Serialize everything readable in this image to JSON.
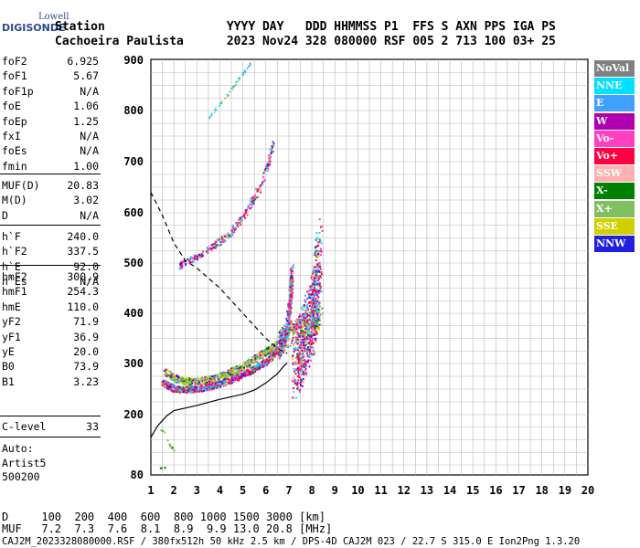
{
  "logo": {
    "top": "Lowell",
    "main": "DIGISONDE"
  },
  "header": {
    "line1": "Station                 YYYY DAY   DDD HHMMSS P1  FFS S AXN PPS IGA PS",
    "line2": "Cachoeira Paulista      2023 Nov24 328 080000 RSF 005 2 713 100 03+ 25"
  },
  "params_a": [
    {
      "k": "foF2",
      "v": "6.925"
    },
    {
      "k": "foF1",
      "v": "5.67"
    },
    {
      "k": "foF1p",
      "v": "N/A"
    },
    {
      "k": "foE",
      "v": "1.06"
    },
    {
      "k": "foEp",
      "v": "1.25"
    },
    {
      "k": "fxI",
      "v": "N/A"
    },
    {
      "k": "foEs",
      "v": "N/A"
    },
    {
      "k": "fmin",
      "v": "1.00"
    }
  ],
  "params_b": [
    {
      "k": "MUF(D)",
      "v": "20.83"
    },
    {
      "k": "M(D)",
      "v": "3.02"
    },
    {
      "k": "D",
      "v": "N/A"
    }
  ],
  "params_c": [
    {
      "k": "h`F",
      "v": "240.0"
    },
    {
      "k": "h`F2",
      "v": "337.5"
    },
    {
      "k": "h`E",
      "v": "92.0"
    },
    {
      "k": "h`Es",
      "v": "N/A"
    }
  ],
  "params_d": [
    {
      "k": "hmF2",
      "v": "300.9"
    },
    {
      "k": "hmF1",
      "v": "254.3"
    },
    {
      "k": "hmE",
      "v": "110.0"
    },
    {
      "k": "yF2",
      "v": "71.9"
    },
    {
      "k": "yF1",
      "v": "36.9"
    },
    {
      "k": "yE",
      "v": "20.0"
    },
    {
      "k": "B0",
      "v": "73.9"
    },
    {
      "k": "B1",
      "v": "3.23"
    }
  ],
  "params_e": [
    {
      "k": "C-level",
      "v": "33"
    }
  ],
  "auto": {
    "l1": "Auto:",
    "l2": "Artist5",
    "l3": "500200"
  },
  "legend": [
    {
      "label": "NoVal",
      "color": "#808080"
    },
    {
      "label": "NNE",
      "color": "#00e0ff"
    },
    {
      "label": "E",
      "color": "#40a0ff"
    },
    {
      "label": "W",
      "color": "#b000b0"
    },
    {
      "label": "Vo-",
      "color": "#ff40c0"
    },
    {
      "label": "Vo+",
      "color": "#ff0040"
    },
    {
      "label": "SSW",
      "color": "#ffb0b0"
    },
    {
      "label": "X-",
      "color": "#008000"
    },
    {
      "label": "X+",
      "color": "#80c060"
    },
    {
      "label": "SSE",
      "color": "#d0d000"
    },
    {
      "label": "NNW",
      "color": "#2020e0"
    }
  ],
  "footer": {
    "d_line": "D     100  200  400  600  800 1000 1500 3000 [km]",
    "muf_line": "MUF   7.2  7.3  7.6  8.1  8.9  9.9 13.0 20.8 [MHz]",
    "info_line": "CAJ2M_2023328080000.RSF / 380fx512h 50 kHz 2.5 km / DPS-4D CAJ2M 023 / 22.7 S 315.0 E Ion2Png 1.3.20"
  },
  "chart_data": {
    "type": "scatter",
    "x_ticks": [
      1,
      2,
      3,
      4,
      5,
      6,
      7,
      8,
      9,
      10,
      11,
      12,
      13,
      14,
      15,
      16,
      17,
      18,
      19,
      20
    ],
    "y_ticks": [
      80,
      200,
      300,
      400,
      500,
      600,
      700,
      800,
      900
    ],
    "xlim": [
      1,
      20
    ],
    "ylim": [
      80,
      900
    ],
    "grid": true,
    "traces": {
      "o_lower": [
        [
          1.5,
          265
        ],
        [
          1.7,
          258
        ],
        [
          2.0,
          252
        ],
        [
          2.5,
          250
        ],
        [
          3.0,
          252
        ],
        [
          3.5,
          256
        ],
        [
          4.0,
          262
        ],
        [
          4.5,
          270
        ],
        [
          5.0,
          280
        ],
        [
          5.5,
          292
        ],
        [
          6.0,
          305
        ],
        [
          6.3,
          318
        ],
        [
          6.6,
          335
        ],
        [
          6.8,
          355
        ],
        [
          6.95,
          390
        ],
        [
          7.05,
          440
        ],
        [
          7.1,
          480
        ]
      ],
      "o_upper": [
        [
          7.2,
          300
        ],
        [
          7.4,
          320
        ],
        [
          7.6,
          345
        ],
        [
          7.8,
          370
        ],
        [
          8.0,
          395
        ],
        [
          8.1,
          430
        ],
        [
          8.2,
          480
        ],
        [
          8.3,
          520
        ]
      ],
      "x_lower": [
        [
          1.6,
          285
        ],
        [
          2.0,
          272
        ],
        [
          2.5,
          266
        ],
        [
          3.0,
          266
        ],
        [
          3.5,
          270
        ],
        [
          4.0,
          276
        ],
        [
          4.5,
          285
        ],
        [
          5.0,
          296
        ],
        [
          5.5,
          310
        ],
        [
          6.0,
          325
        ],
        [
          6.5,
          342
        ],
        [
          7.0,
          360
        ],
        [
          7.5,
          372
        ],
        [
          8.0,
          382
        ],
        [
          8.4,
          392
        ]
      ],
      "f2_second": [
        [
          2.2,
          495
        ],
        [
          2.6,
          505
        ],
        [
          3.0,
          515
        ],
        [
          3.5,
          530
        ],
        [
          4.0,
          545
        ],
        [
          4.5,
          565
        ],
        [
          5.0,
          595
        ],
        [
          5.4,
          625
        ],
        [
          5.8,
          660
        ],
        [
          6.1,
          700
        ],
        [
          6.3,
          740
        ]
      ],
      "third": [
        [
          3.5,
          785
        ],
        [
          3.8,
          805
        ],
        [
          4.2,
          825
        ],
        [
          4.6,
          850
        ],
        [
          5.0,
          875
        ],
        [
          5.3,
          895
        ]
      ],
      "low": [
        [
          1.4,
          170
        ],
        [
          1.6,
          165
        ],
        [
          1.8,
          140
        ],
        [
          2.0,
          130
        ]
      ],
      "bottom": [
        [
          1.4,
          95
        ],
        [
          1.6,
          96
        ]
      ]
    },
    "profile_solid": [
      [
        1.0,
        155
      ],
      [
        1.3,
        178
      ],
      [
        1.7,
        198
      ],
      [
        2.0,
        208
      ],
      [
        3.0,
        218
      ],
      [
        4.0,
        230
      ],
      [
        5.0,
        240
      ],
      [
        5.5,
        248
      ],
      [
        6.0,
        262
      ],
      [
        6.5,
        280
      ],
      [
        6.8,
        296
      ],
      [
        6.93,
        301
      ]
    ],
    "profile_dashed": [
      [
        1.0,
        640
      ],
      [
        1.5,
        595
      ],
      [
        2.0,
        540
      ],
      [
        2.5,
        505
      ],
      [
        3.0,
        490
      ],
      [
        3.5,
        470
      ],
      [
        4.0,
        450
      ],
      [
        4.5,
        425
      ],
      [
        5.0,
        400
      ],
      [
        5.5,
        375
      ],
      [
        6.0,
        350
      ],
      [
        6.5,
        330
      ],
      [
        6.93,
        320
      ]
    ]
  }
}
